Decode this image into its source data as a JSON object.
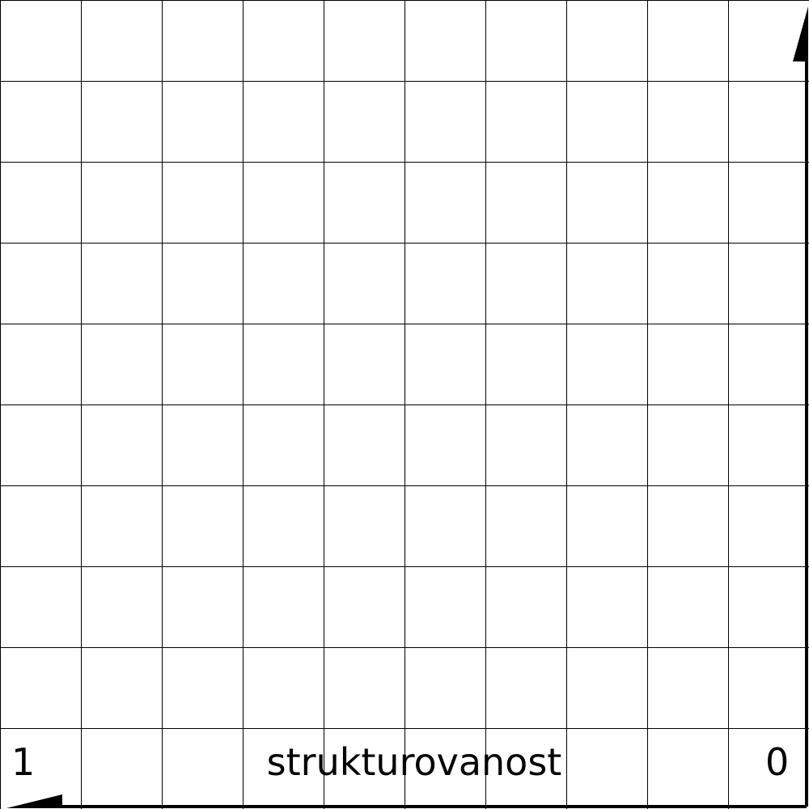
{
  "axis": {
    "label": "strukturovanost",
    "left_value": "1",
    "right_value": "0"
  },
  "grid": {
    "rows": 10,
    "columns": 10,
    "line_color": "#000000",
    "background_color": "#ffffff"
  },
  "arrows": [
    {
      "name": "up-arrow-icon",
      "direction": "up",
      "color": "#000000"
    },
    {
      "name": "left-arrow-icon",
      "direction": "left",
      "color": "#000000"
    }
  ]
}
